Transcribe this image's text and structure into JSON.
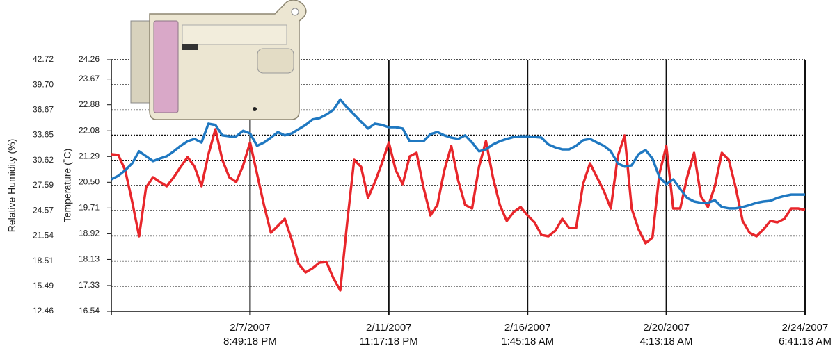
{
  "chart_data": {
    "type": "line",
    "y_label": "Relative Humidity (%)",
    "y2_label": "Temperature (˚C)",
    "categories": [
      null,
      null,
      null,
      null,
      null,
      null,
      null,
      null,
      null,
      null,
      null,
      null,
      null,
      null,
      null,
      null,
      null,
      null,
      null,
      null,
      "2/7/2007\n8:49:18 PM",
      null,
      null,
      null,
      null,
      null,
      null,
      null,
      null,
      null,
      null,
      null,
      null,
      null,
      null,
      null,
      null,
      null,
      null,
      null,
      "2/11/2007\n11:17:18 PM",
      null,
      null,
      null,
      null,
      null,
      null,
      null,
      null,
      null,
      null,
      null,
      null,
      null,
      null,
      null,
      null,
      null,
      null,
      null,
      "2/16/2007\n1:45:18 AM",
      null,
      null,
      null,
      null,
      null,
      null,
      null,
      null,
      null,
      null,
      null,
      null,
      null,
      null,
      null,
      null,
      null,
      null,
      null,
      "2/20/2007\n4:13:18 AM",
      null,
      null,
      null,
      null,
      null,
      null,
      null,
      null,
      null,
      null,
      null,
      null,
      null,
      null,
      null,
      null,
      null,
      null,
      null,
      "2/24/2007\n6:41:18 AM"
    ],
    "series": [
      {
        "color": "#e8262b",
        "values": [
          31.35,
          31.27,
          29.43,
          25.67,
          21.49,
          27.34,
          28.59,
          28.01,
          27.51,
          28.59,
          29.85,
          31.02,
          29.85,
          27.51,
          31.35,
          34.36,
          30.68,
          28.59,
          28.01,
          30.01,
          32.77,
          29.01,
          25.25,
          21.91,
          22.74,
          23.58,
          21.07,
          18.14,
          17.14,
          17.64,
          18.31,
          18.39,
          16.47,
          14.97,
          23.16,
          30.68,
          29.85,
          26.09,
          28.01,
          30.26,
          32.77,
          29.43,
          27.76,
          31.1,
          31.52,
          27.34,
          23.99,
          25.25,
          29.43,
          32.35,
          28.18,
          25.25,
          24.83,
          29.85,
          32.94,
          28.59,
          25.25,
          23.33,
          24.41,
          25.0,
          23.99,
          23.16,
          21.65,
          21.49,
          22.16,
          23.58,
          22.49,
          22.49,
          27.76,
          30.26,
          28.59,
          26.92,
          24.83,
          31.1,
          33.61,
          24.83,
          22.32,
          20.65,
          21.32,
          29.01,
          32.35,
          24.83,
          24.83,
          28.59,
          31.52,
          26.25,
          25.0,
          27.51,
          31.52,
          30.68,
          27.34,
          23.33,
          21.91,
          21.49,
          22.32,
          23.33,
          23.16,
          23.58,
          24.83,
          24.83,
          24.66
        ]
      },
      {
        "color": "#1f78c1",
        "axis": "y2",
        "values": [
          20.59,
          20.7,
          20.87,
          21.08,
          21.45,
          21.3,
          21.15,
          21.23,
          21.3,
          21.45,
          21.62,
          21.76,
          21.83,
          21.72,
          22.3,
          22.26,
          21.94,
          21.91,
          21.91,
          22.08,
          22.0,
          21.62,
          21.72,
          21.87,
          22.04,
          21.94,
          22.0,
          22.13,
          22.26,
          22.43,
          22.47,
          22.58,
          22.72,
          23.04,
          22.79,
          22.58,
          22.36,
          22.15,
          22.3,
          22.26,
          22.19,
          22.19,
          22.15,
          21.76,
          21.76,
          21.76,
          21.98,
          22.04,
          21.94,
          21.87,
          21.83,
          21.94,
          21.72,
          21.45,
          21.51,
          21.66,
          21.76,
          21.83,
          21.89,
          21.91,
          21.91,
          21.89,
          21.87,
          21.66,
          21.57,
          21.51,
          21.51,
          21.62,
          21.79,
          21.83,
          21.72,
          21.62,
          21.45,
          21.08,
          20.98,
          21.02,
          21.36,
          21.49,
          21.23,
          20.66,
          20.44,
          20.59,
          20.29,
          20.02,
          19.91,
          19.87,
          19.87,
          19.95,
          19.74,
          19.7,
          19.7,
          19.74,
          19.8,
          19.87,
          19.91,
          19.93,
          20.02,
          20.08,
          20.12,
          20.12,
          20.12
        ]
      }
    ],
    "ylim": [
      12.46,
      42.72
    ],
    "yticks": [
      12.46,
      15.49,
      18.51,
      21.54,
      24.57,
      27.59,
      30.62,
      33.65,
      36.67,
      {
        "value": 39.7,
        "label": "39.70"
      },
      42.72
    ],
    "y2lim": [
      16.54,
      24.26
    ],
    "y2ticks": [
      16.54,
      17.33,
      18.13,
      18.92,
      19.71,
      {
        "value": 20.5,
        "label": "20.50"
      },
      21.29,
      22.08,
      22.88,
      23.67,
      24.26
    ],
    "grid": true
  }
}
